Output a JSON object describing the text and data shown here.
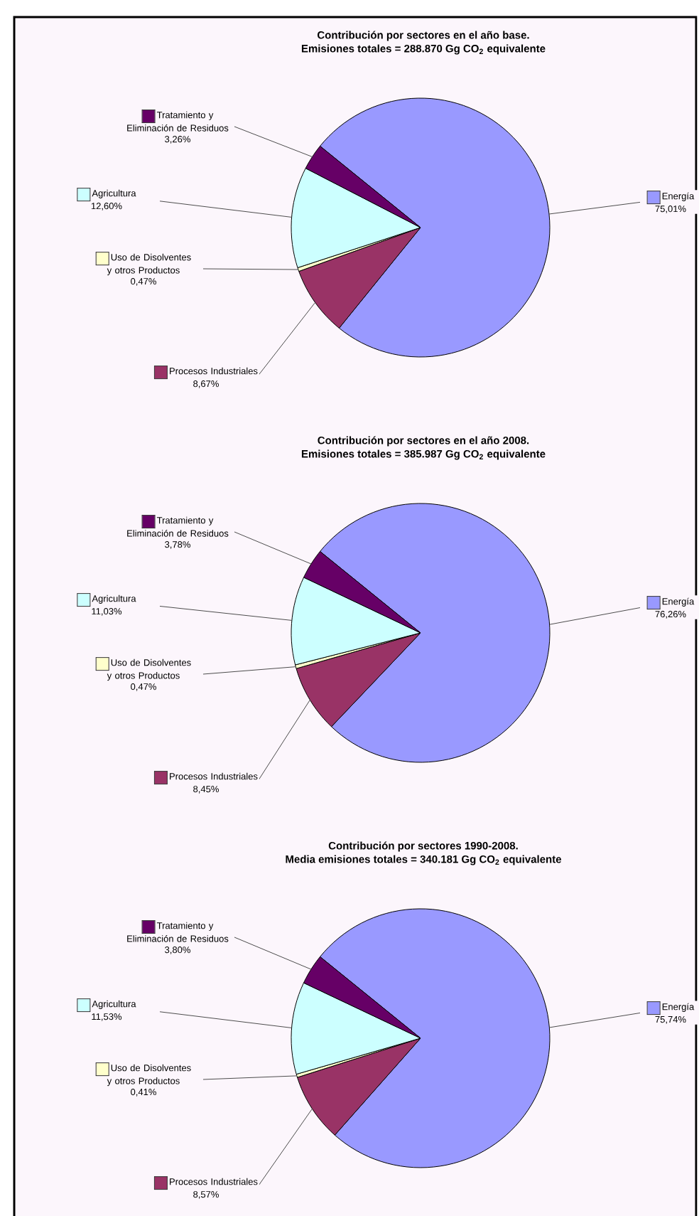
{
  "chart_data": [
    {
      "type": "pie",
      "title": "Contribución por sectores en el año base.",
      "subtitle": "Emisiones totales = 288.870 Gg CO$_{2}$ equivalente",
      "categories": [
        "Energía",
        "Procesos Industriales",
        "Uso de Disolventes y otros Productos",
        "Agricultura",
        "Tratamiento y Eliminación de Residuos"
      ],
      "values": [
        75.01,
        8.67,
        0.47,
        12.6,
        3.26
      ],
      "value_labels": [
        "75,01%",
        "8,67%",
        "0,47%",
        "12,60%",
        "3,26%"
      ],
      "colors": [
        "#9999ff",
        "#993366",
        "#ffffcc",
        "#ccffff",
        "#660066"
      ],
      "legend": "left"
    },
    {
      "type": "pie",
      "title": "Contribución por sectores en el año 2008.",
      "subtitle": "Emisiones totales = 385.987 Gg CO$_{2}$ equivalente",
      "categories": [
        "Energía",
        "Procesos Industriales",
        "Uso de Disolventes y otros Productos",
        "Agricultura",
        "Tratamiento y Eliminación de Residuos"
      ],
      "values": [
        76.26,
        8.45,
        0.47,
        11.03,
        3.78
      ],
      "value_labels": [
        "76,26%",
        "8,45%",
        "0,47%",
        "11,03%",
        "3,78%"
      ],
      "colors": [
        "#9999ff",
        "#993366",
        "#ffffcc",
        "#ccffff",
        "#660066"
      ],
      "legend": "left"
    },
    {
      "type": "pie",
      "title": "Contribución por sectores 1990-2008.",
      "subtitle": "Media emisiones totales = 340.181 Gg CO$_{2}$ equivalente",
      "categories": [
        "Energía",
        "Procesos Industriales",
        "Uso de Disolventes y otros Productos",
        "Agricultura",
        "Tratamiento y Eliminación de Residuos"
      ],
      "values": [
        75.74,
        8.57,
        0.41,
        11.53,
        3.8
      ],
      "value_labels": [
        "75,74%",
        "8,57%",
        "0,41%",
        "11,53%",
        "3,80%"
      ],
      "colors": [
        "#9999ff",
        "#993366",
        "#ffffcc",
        "#ccffff",
        "#660066"
      ],
      "legend": "left"
    }
  ]
}
